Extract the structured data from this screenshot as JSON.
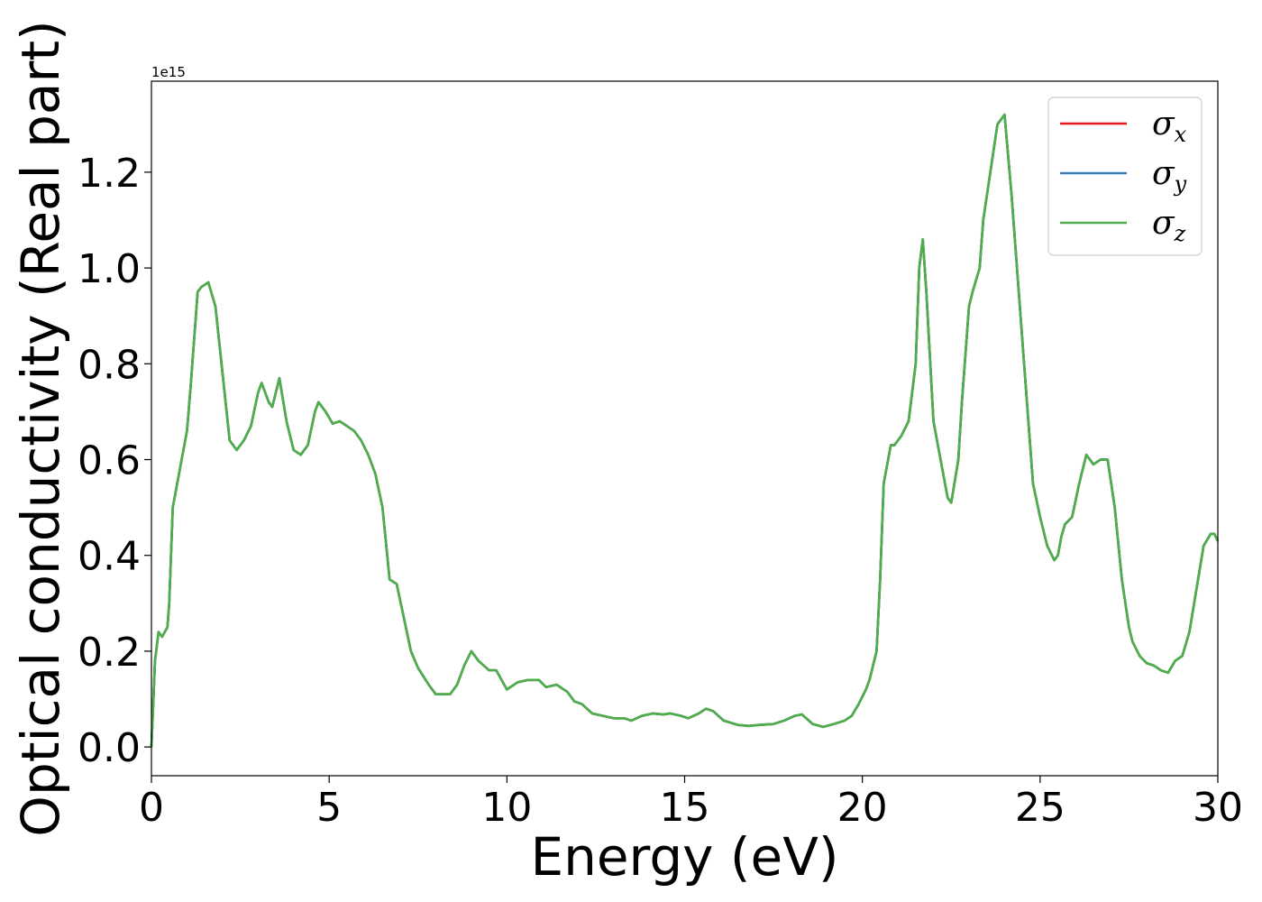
{
  "chart_data": {
    "type": "line",
    "title": "",
    "xlabel": "Energy (eV)",
    "ylabel": "Optical conductivity (Real part)",
    "y_offset_label": "1e15",
    "y_scale": 1000000000000000.0,
    "xlim": [
      0,
      30
    ],
    "ylim": [
      -0.06,
      1.39
    ],
    "xticks": [
      0,
      5,
      10,
      15,
      20,
      25,
      30
    ],
    "xtick_labels": [
      "0",
      "5",
      "10",
      "15",
      "20",
      "25",
      "30"
    ],
    "yticks": [
      0.0,
      0.2,
      0.4,
      0.6,
      0.8,
      1.0,
      1.2
    ],
    "ytick_labels": [
      "0.0",
      "0.2",
      "0.4",
      "0.6",
      "0.8",
      "1.0",
      "1.2"
    ],
    "grid": false,
    "legend_position": "top-right",
    "x": [
      0,
      0.1,
      0.2,
      0.3,
      0.45,
      0.5,
      0.6,
      0.7,
      0.8,
      1.0,
      1.1,
      1.3,
      1.4,
      1.6,
      1.8,
      2.0,
      2.2,
      2.4,
      2.6,
      2.8,
      3.0,
      3.1,
      3.3,
      3.4,
      3.6,
      3.8,
      4.0,
      4.2,
      4.4,
      4.6,
      4.7,
      4.9,
      5.1,
      5.3,
      5.5,
      5.7,
      5.9,
      6.1,
      6.3,
      6.5,
      6.7,
      6.9,
      7.1,
      7.3,
      7.5,
      7.8,
      8.0,
      8.4,
      8.6,
      8.8,
      9.0,
      9.2,
      9.5,
      9.7,
      10.0,
      10.3,
      10.6,
      10.9,
      11.1,
      11.4,
      11.7,
      11.9,
      12.1,
      12.4,
      12.7,
      13.0,
      13.3,
      13.5,
      13.8,
      14.1,
      14.4,
      14.6,
      14.9,
      15.1,
      15.4,
      15.6,
      15.8,
      16.1,
      16.5,
      16.8,
      17.1,
      17.5,
      17.8,
      18.1,
      18.3,
      18.6,
      18.9,
      19.2,
      19.5,
      19.7,
      19.9,
      20.1,
      20.2,
      20.4,
      20.5,
      20.6,
      20.8,
      20.9,
      21.1,
      21.3,
      21.5,
      21.6,
      21.7,
      21.8,
      22.0,
      22.2,
      22.4,
      22.5,
      22.7,
      22.8,
      23.0,
      23.1,
      23.3,
      23.4,
      23.6,
      23.8,
      24.0,
      24.2,
      24.4,
      24.6,
      24.8,
      25.0,
      25.2,
      25.4,
      25.5,
      25.6,
      25.7,
      25.9,
      26.1,
      26.3,
      26.5,
      26.7,
      26.9,
      27.1,
      27.3,
      27.5,
      27.6,
      27.8,
      28.0,
      28.2,
      28.4,
      28.6,
      28.8,
      29.0,
      29.2,
      29.4,
      29.6,
      29.8,
      29.9,
      30.0
    ],
    "series": [
      {
        "name": "σx",
        "sub": "x",
        "color": "#e41a1c",
        "values": [
          0.0,
          0.18,
          0.24,
          0.23,
          0.25,
          0.3,
          0.5,
          0.54,
          0.58,
          0.66,
          0.75,
          0.95,
          0.96,
          0.97,
          0.92,
          0.78,
          0.64,
          0.62,
          0.64,
          0.67,
          0.74,
          0.76,
          0.72,
          0.71,
          0.77,
          0.68,
          0.62,
          0.61,
          0.63,
          0.7,
          0.72,
          0.7,
          0.675,
          0.68,
          0.67,
          0.66,
          0.64,
          0.61,
          0.57,
          0.5,
          0.35,
          0.34,
          0.27,
          0.2,
          0.165,
          0.13,
          0.11,
          0.11,
          0.13,
          0.17,
          0.2,
          0.18,
          0.16,
          0.16,
          0.12,
          0.135,
          0.14,
          0.14,
          0.125,
          0.13,
          0.115,
          0.095,
          0.09,
          0.07,
          0.065,
          0.06,
          0.06,
          0.055,
          0.065,
          0.07,
          0.068,
          0.07,
          0.065,
          0.06,
          0.07,
          0.08,
          0.075,
          0.055,
          0.046,
          0.044,
          0.046,
          0.048,
          0.055,
          0.065,
          0.068,
          0.048,
          0.042,
          0.048,
          0.055,
          0.065,
          0.09,
          0.12,
          0.14,
          0.2,
          0.35,
          0.55,
          0.63,
          0.63,
          0.65,
          0.68,
          0.8,
          1.0,
          1.06,
          0.95,
          0.68,
          0.6,
          0.52,
          0.51,
          0.6,
          0.72,
          0.92,
          0.95,
          1.0,
          1.1,
          1.2,
          1.3,
          1.32,
          1.15,
          0.95,
          0.75,
          0.55,
          0.48,
          0.42,
          0.39,
          0.4,
          0.44,
          0.465,
          0.48,
          0.55,
          0.61,
          0.59,
          0.6,
          0.6,
          0.5,
          0.35,
          0.25,
          0.22,
          0.19,
          0.175,
          0.17,
          0.16,
          0.155,
          0.18,
          0.19,
          0.24,
          0.33,
          0.42,
          0.445,
          0.445,
          0.43
        ]
      },
      {
        "name": "σy",
        "sub": "y",
        "color": "#377eb8",
        "values": [
          0.0,
          0.18,
          0.24,
          0.23,
          0.25,
          0.3,
          0.5,
          0.54,
          0.58,
          0.66,
          0.75,
          0.95,
          0.96,
          0.97,
          0.92,
          0.78,
          0.64,
          0.62,
          0.64,
          0.67,
          0.74,
          0.76,
          0.72,
          0.71,
          0.77,
          0.68,
          0.62,
          0.61,
          0.63,
          0.7,
          0.72,
          0.7,
          0.675,
          0.68,
          0.67,
          0.66,
          0.64,
          0.61,
          0.57,
          0.5,
          0.35,
          0.34,
          0.27,
          0.2,
          0.165,
          0.13,
          0.11,
          0.11,
          0.13,
          0.17,
          0.2,
          0.18,
          0.16,
          0.16,
          0.12,
          0.135,
          0.14,
          0.14,
          0.125,
          0.13,
          0.115,
          0.095,
          0.09,
          0.07,
          0.065,
          0.06,
          0.06,
          0.055,
          0.065,
          0.07,
          0.068,
          0.07,
          0.065,
          0.06,
          0.07,
          0.08,
          0.075,
          0.055,
          0.046,
          0.044,
          0.046,
          0.048,
          0.055,
          0.065,
          0.068,
          0.048,
          0.042,
          0.048,
          0.055,
          0.065,
          0.09,
          0.12,
          0.14,
          0.2,
          0.35,
          0.55,
          0.63,
          0.63,
          0.65,
          0.68,
          0.8,
          1.0,
          1.06,
          0.95,
          0.68,
          0.6,
          0.52,
          0.51,
          0.6,
          0.72,
          0.92,
          0.95,
          1.0,
          1.1,
          1.2,
          1.3,
          1.32,
          1.15,
          0.95,
          0.75,
          0.55,
          0.48,
          0.42,
          0.39,
          0.4,
          0.44,
          0.465,
          0.48,
          0.55,
          0.61,
          0.59,
          0.6,
          0.6,
          0.5,
          0.35,
          0.25,
          0.22,
          0.19,
          0.175,
          0.17,
          0.16,
          0.155,
          0.18,
          0.19,
          0.24,
          0.33,
          0.42,
          0.445,
          0.445,
          0.43
        ]
      },
      {
        "name": "σz",
        "sub": "z",
        "color": "#4daf4a",
        "values": [
          0.0,
          0.18,
          0.24,
          0.23,
          0.25,
          0.3,
          0.5,
          0.54,
          0.58,
          0.66,
          0.75,
          0.95,
          0.96,
          0.97,
          0.92,
          0.78,
          0.64,
          0.62,
          0.64,
          0.67,
          0.74,
          0.76,
          0.72,
          0.71,
          0.77,
          0.68,
          0.62,
          0.61,
          0.63,
          0.7,
          0.72,
          0.7,
          0.675,
          0.68,
          0.67,
          0.66,
          0.64,
          0.61,
          0.57,
          0.5,
          0.35,
          0.34,
          0.27,
          0.2,
          0.165,
          0.13,
          0.11,
          0.11,
          0.13,
          0.17,
          0.2,
          0.18,
          0.16,
          0.16,
          0.12,
          0.135,
          0.14,
          0.14,
          0.125,
          0.13,
          0.115,
          0.095,
          0.09,
          0.07,
          0.065,
          0.06,
          0.06,
          0.055,
          0.065,
          0.07,
          0.068,
          0.07,
          0.065,
          0.06,
          0.07,
          0.08,
          0.075,
          0.055,
          0.046,
          0.044,
          0.046,
          0.048,
          0.055,
          0.065,
          0.068,
          0.048,
          0.042,
          0.048,
          0.055,
          0.065,
          0.09,
          0.12,
          0.14,
          0.2,
          0.35,
          0.55,
          0.63,
          0.63,
          0.65,
          0.68,
          0.8,
          1.0,
          1.06,
          0.95,
          0.68,
          0.6,
          0.52,
          0.51,
          0.6,
          0.72,
          0.92,
          0.95,
          1.0,
          1.1,
          1.2,
          1.3,
          1.32,
          1.15,
          0.95,
          0.75,
          0.55,
          0.48,
          0.42,
          0.39,
          0.4,
          0.44,
          0.465,
          0.48,
          0.55,
          0.61,
          0.59,
          0.6,
          0.6,
          0.5,
          0.35,
          0.25,
          0.22,
          0.19,
          0.175,
          0.17,
          0.16,
          0.155,
          0.18,
          0.19,
          0.24,
          0.33,
          0.42,
          0.445,
          0.445,
          0.43
        ]
      }
    ]
  }
}
